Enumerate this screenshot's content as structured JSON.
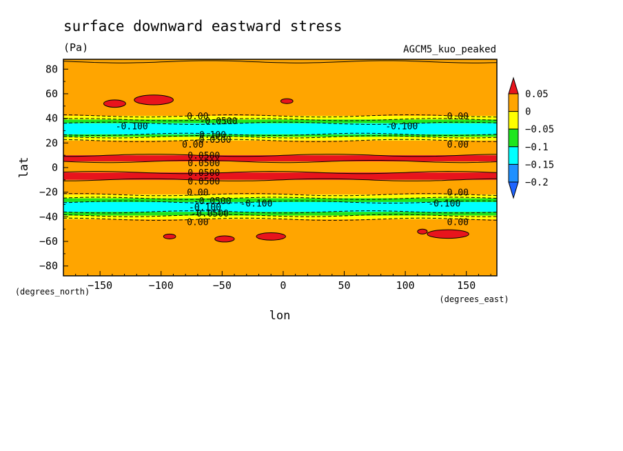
{
  "chart_data": {
    "type": "heatmap",
    "title": "surface downward eastward stress",
    "units": "(Pa)",
    "model": "AGCM5_kuo_peaked",
    "xlabel": "lon",
    "ylabel": "lat",
    "x_units": "(degrees_east)",
    "y_units": "(degrees_north)",
    "xlim": [
      -180,
      175
    ],
    "ylim": [
      -88,
      88
    ],
    "x_ticks": [
      -150,
      -100,
      -50,
      0,
      50,
      100,
      150
    ],
    "y_ticks": [
      80,
      60,
      40,
      20,
      0,
      -20,
      -40,
      -60,
      -80
    ],
    "colorbar": {
      "levels": [
        "0.05",
        "0",
        "−0.05",
        "−0.1",
        "−0.15",
        "−0.2"
      ],
      "colors": [
        "#e8141c",
        "#ffa500",
        "#ffff00",
        "#1ee61e",
        "#00ffff",
        "#1e90ff",
        "#1e64ff"
      ]
    },
    "zonal_bands": [
      {
        "lat": [
          86,
          88
        ],
        "value": 0.0,
        "color": "#ffa500"
      },
      {
        "lat": [
          42,
          86
        ],
        "value": 0.0,
        "color": "#ffa500"
      },
      {
        "lat": [
          39,
          42
        ],
        "value": -0.03,
        "color": "#ffff00"
      },
      {
        "lat": [
          36,
          39
        ],
        "value": -0.07,
        "color": "#1ee61e"
      },
      {
        "lat": [
          27,
          36
        ],
        "value": -0.12,
        "color": "#00ffff"
      },
      {
        "lat": [
          25,
          27
        ],
        "value": -0.07,
        "color": "#1ee61e"
      },
      {
        "lat": [
          22,
          25
        ],
        "value": -0.03,
        "color": "#ffff00"
      },
      {
        "lat": [
          10,
          22
        ],
        "value": 0.02,
        "color": "#ffa500"
      },
      {
        "lat": [
          5,
          10
        ],
        "value": 0.06,
        "color": "#e8141c"
      },
      {
        "lat": [
          -4,
          5
        ],
        "value": 0.03,
        "color": "#ffa500"
      },
      {
        "lat": [
          -10,
          -4
        ],
        "value": 0.06,
        "color": "#e8141c"
      },
      {
        "lat": [
          -22,
          -10
        ],
        "value": 0.02,
        "color": "#ffa500"
      },
      {
        "lat": [
          -25,
          -22
        ],
        "value": -0.03,
        "color": "#ffff00"
      },
      {
        "lat": [
          -28,
          -25
        ],
        "value": -0.07,
        "color": "#1ee61e"
      },
      {
        "lat": [
          -36,
          -28
        ],
        "value": -0.12,
        "color": "#00ffff"
      },
      {
        "lat": [
          -39,
          -36
        ],
        "value": -0.07,
        "color": "#1ee61e"
      },
      {
        "lat": [
          -42,
          -39
        ],
        "value": -0.03,
        "color": "#ffff00"
      },
      {
        "lat": [
          -88,
          -42
        ],
        "value": 0.0,
        "color": "#ffa500"
      }
    ],
    "positive_patches": [
      {
        "lon": -138,
        "lat": 52,
        "dlon": 9,
        "dlat": 3
      },
      {
        "lon": -106,
        "lat": 55,
        "dlon": 16,
        "dlat": 4
      },
      {
        "lon": 3,
        "lat": 54,
        "dlon": 5,
        "dlat": 2
      },
      {
        "lon": -93,
        "lat": -56,
        "dlon": 5,
        "dlat": 2
      },
      {
        "lon": -48,
        "lat": -58,
        "dlon": 8,
        "dlat": 2.5
      },
      {
        "lon": -10,
        "lat": -56,
        "dlon": 12,
        "dlat": 3
      },
      {
        "lon": 114,
        "lat": -52,
        "dlon": 4,
        "dlat": 2
      },
      {
        "lon": 135,
        "lat": -54,
        "dlon": 17,
        "dlat": 3.5
      }
    ],
    "contour_labels": [
      {
        "text": "0.00",
        "lon": -70,
        "lat": 42
      },
      {
        "text": "-0.0500",
        "lon": -53,
        "lat": 38
      },
      {
        "text": "-0.100",
        "lon": -124,
        "lat": 34
      },
      {
        "text": "-0.100",
        "lon": 97,
        "lat": 34
      },
      {
        "text": "0.00",
        "lon": 143,
        "lat": 42
      },
      {
        "text": "-0.100",
        "lon": -60,
        "lat": 27
      },
      {
        "text": "-0.0500",
        "lon": -58,
        "lat": 23
      },
      {
        "text": "0.00",
        "lon": -74,
        "lat": 19
      },
      {
        "text": "0.00",
        "lon": 143,
        "lat": 19
      },
      {
        "text": "0.0500",
        "lon": -65,
        "lat": 10
      },
      {
        "text": "0.0500",
        "lon": -65,
        "lat": 4
      },
      {
        "text": "0.0500",
        "lon": -65,
        "lat": -4
      },
      {
        "text": "0.0500",
        "lon": -65,
        "lat": -11
      },
      {
        "text": "0.00",
        "lon": -70,
        "lat": -20
      },
      {
        "text": "0.00",
        "lon": 143,
        "lat": -20
      },
      {
        "text": "-0.0500",
        "lon": -58,
        "lat": -27
      },
      {
        "text": "-0.100",
        "lon": -64,
        "lat": -32
      },
      {
        "text": "-0.100",
        "lon": -22,
        "lat": -29
      },
      {
        "text": "-0.100",
        "lon": 132,
        "lat": -29
      },
      {
        "text": "-0.0500",
        "lon": -60,
        "lat": -37
      },
      {
        "text": "0.00",
        "lon": -70,
        "lat": -44
      },
      {
        "text": "0.00",
        "lon": 143,
        "lat": -44
      }
    ]
  }
}
